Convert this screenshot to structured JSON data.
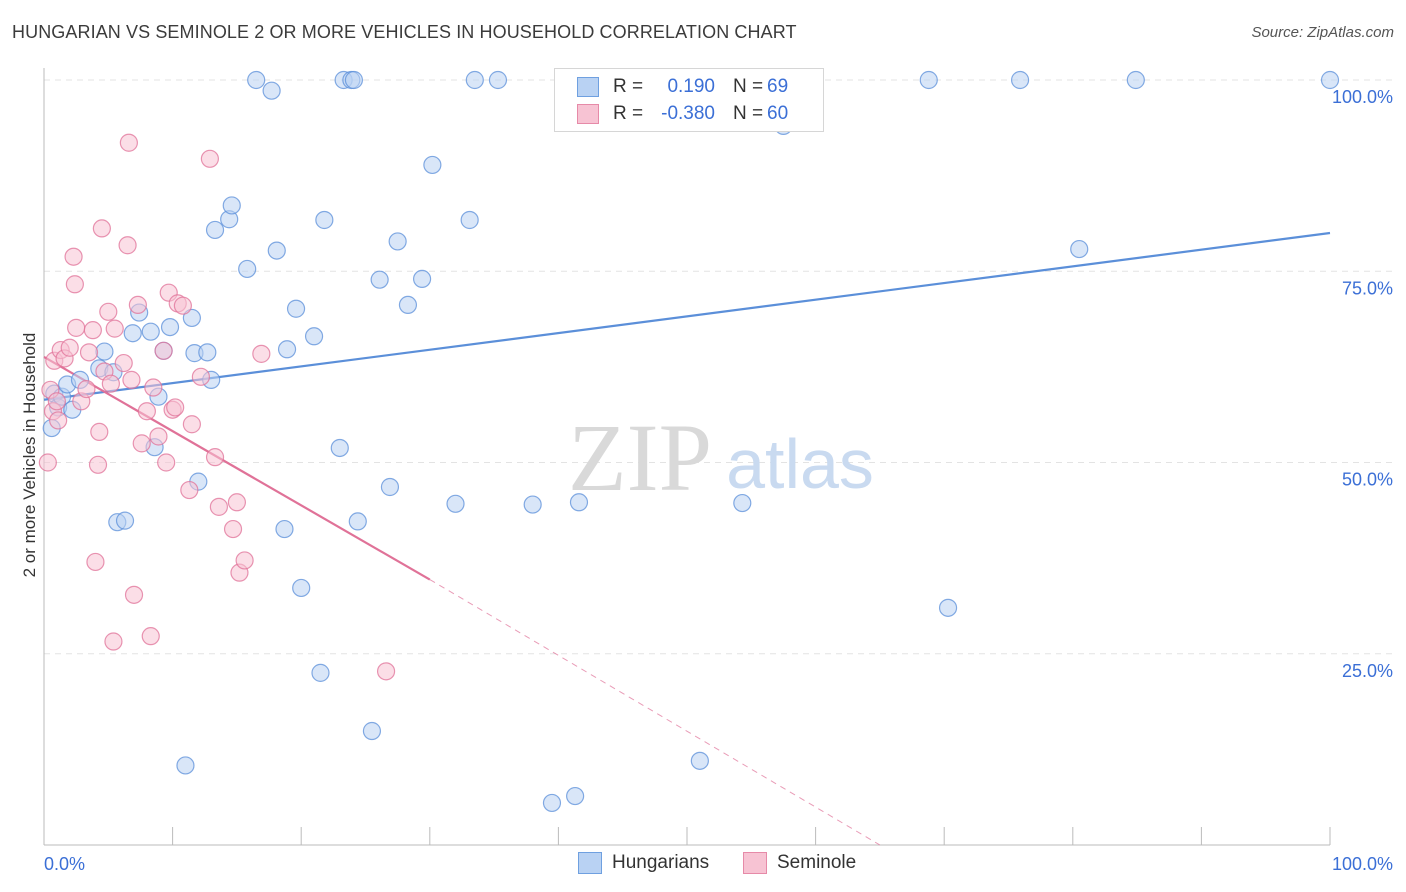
{
  "title": "HUNGARIAN VS SEMINOLE 2 OR MORE VEHICLES IN HOUSEHOLD CORRELATION CHART",
  "source": "Source: ZipAtlas.com",
  "watermark": {
    "zip": "ZIP",
    "atlas": "atlas"
  },
  "legend": {
    "rows": [
      {
        "r_label": "R =",
        "r_value": "0.190",
        "n_label": "N =",
        "n_value": "69",
        "color": "#6fa0e0",
        "fill": "#b9d2f3"
      },
      {
        "r_label": "R =",
        "r_value": "-0.380",
        "n_label": "N =",
        "n_value": "60",
        "color": "#e68aa8",
        "fill": "#f7c3d3"
      }
    ]
  },
  "bottom_legend": [
    {
      "label": "Hungarians",
      "color": "#6fa0e0",
      "fill": "#b9d2f3"
    },
    {
      "label": "Seminole",
      "color": "#e68aa8",
      "fill": "#f7c3d3"
    }
  ],
  "chart_data": {
    "type": "scatter",
    "title": "HUNGARIAN VS SEMINOLE 2 OR MORE VEHICLES IN HOUSEHOLD CORRELATION CHART",
    "xlabel": "",
    "ylabel": "2 or more Vehicles in Household",
    "xlim": [
      0,
      100
    ],
    "ylim": [
      0,
      100
    ],
    "x_tick_labels": [
      "0.0%",
      "100.0%"
    ],
    "y_tick_labels": [
      "100.0%",
      "75.0%",
      "50.0%",
      "25.0%"
    ],
    "y_tick_values": [
      100,
      75,
      50,
      25
    ],
    "grid": true,
    "series": [
      {
        "name": "Hungarians",
        "color": "#5b8fd9",
        "fill": "#b9d2f3",
        "trend": {
          "x0": 0,
          "y0": 58.2,
          "x1": 100,
          "y1": 80.0
        },
        "points": [
          [
            0.6,
            54.5
          ],
          [
            0.8,
            59
          ],
          [
            1.1,
            57.2
          ],
          [
            1.4,
            58.6
          ],
          [
            1.8,
            60.2
          ],
          [
            2.2,
            56.9
          ],
          [
            2.8,
            60.8
          ],
          [
            4.3,
            62.3
          ],
          [
            4.7,
            64.5
          ],
          [
            5.4,
            61.8
          ],
          [
            5.7,
            42.2
          ],
          [
            6.3,
            42.4
          ],
          [
            6.9,
            66.9
          ],
          [
            7.4,
            69.6
          ],
          [
            8.3,
            67.1
          ],
          [
            8.6,
            52.0
          ],
          [
            8.9,
            58.6
          ],
          [
            9.3,
            64.6
          ],
          [
            9.8,
            67.7
          ],
          [
            11.0,
            10.4
          ],
          [
            11.5,
            68.9
          ],
          [
            11.7,
            64.3
          ],
          [
            12.0,
            47.5
          ],
          [
            12.7,
            64.4
          ],
          [
            13.0,
            60.8
          ],
          [
            13.3,
            80.4
          ],
          [
            14.4,
            81.8
          ],
          [
            14.6,
            83.6
          ],
          [
            15.8,
            75.3
          ],
          [
            16.5,
            100
          ],
          [
            17.7,
            98.6
          ],
          [
            18.1,
            77.7
          ],
          [
            18.7,
            41.3
          ],
          [
            18.9,
            64.8
          ],
          [
            19.6,
            70.1
          ],
          [
            20.0,
            33.6
          ],
          [
            21.0,
            66.5
          ],
          [
            21.5,
            22.5
          ],
          [
            21.8,
            81.7
          ],
          [
            23.0,
            51.9
          ],
          [
            23.3,
            100
          ],
          [
            23.9,
            100
          ],
          [
            24.1,
            100
          ],
          [
            24.4,
            42.3
          ],
          [
            25.5,
            14.9
          ],
          [
            26.1,
            73.9
          ],
          [
            26.9,
            46.8
          ],
          [
            27.5,
            78.9
          ],
          [
            28.3,
            70.6
          ],
          [
            29.4,
            74.0
          ],
          [
            30.2,
            88.9
          ],
          [
            32.0,
            44.6
          ],
          [
            33.1,
            81.7
          ],
          [
            33.5,
            100
          ],
          [
            35.3,
            100
          ],
          [
            38.0,
            44.5
          ],
          [
            39.5,
            5.5
          ],
          [
            41.3,
            6.4
          ],
          [
            41.6,
            44.8
          ],
          [
            51.0,
            11.0
          ],
          [
            54.3,
            44.7
          ],
          [
            57.5,
            94.0
          ],
          [
            68.8,
            100
          ],
          [
            70.3,
            31.0
          ],
          [
            75.9,
            100
          ],
          [
            80.5,
            77.9
          ],
          [
            84.9,
            100
          ],
          [
            100.0,
            100
          ]
        ]
      },
      {
        "name": "Seminole",
        "color": "#e07298",
        "fill": "#f7c3d3",
        "trend": {
          "x0": 0,
          "y0": 63.8,
          "x1": 30.0,
          "y1": 34.7,
          "dash_to_x": 65.0,
          "dash_to_y": 0
        },
        "points": [
          [
            0.3,
            50.0
          ],
          [
            0.5,
            59.5
          ],
          [
            0.7,
            56.7
          ],
          [
            0.8,
            63.3
          ],
          [
            1.0,
            58.0
          ],
          [
            1.1,
            55.5
          ],
          [
            1.3,
            64.7
          ],
          [
            1.6,
            63.6
          ],
          [
            2.0,
            65.0
          ],
          [
            2.3,
            76.9
          ],
          [
            2.4,
            73.3
          ],
          [
            2.5,
            67.6
          ],
          [
            2.9,
            58.0
          ],
          [
            3.3,
            59.6
          ],
          [
            3.5,
            64.4
          ],
          [
            3.8,
            67.3
          ],
          [
            4.0,
            37.0
          ],
          [
            4.2,
            49.7
          ],
          [
            4.3,
            54.0
          ],
          [
            4.5,
            80.6
          ],
          [
            4.7,
            61.9
          ],
          [
            5.0,
            69.7
          ],
          [
            5.2,
            60.3
          ],
          [
            5.4,
            26.6
          ],
          [
            5.5,
            67.5
          ],
          [
            6.2,
            63.0
          ],
          [
            6.5,
            78.4
          ],
          [
            6.6,
            91.8
          ],
          [
            6.8,
            60.8
          ],
          [
            7.0,
            32.7
          ],
          [
            7.3,
            70.6
          ],
          [
            7.6,
            52.5
          ],
          [
            8.0,
            56.7
          ],
          [
            8.3,
            27.3
          ],
          [
            8.5,
            59.8
          ],
          [
            8.9,
            53.4
          ],
          [
            9.3,
            64.6
          ],
          [
            9.5,
            50.0
          ],
          [
            9.7,
            72.2
          ],
          [
            10.0,
            56.9
          ],
          [
            10.2,
            57.2
          ],
          [
            10.4,
            70.8
          ],
          [
            10.8,
            70.5
          ],
          [
            11.3,
            46.4
          ],
          [
            11.5,
            55.0
          ],
          [
            12.2,
            61.2
          ],
          [
            12.9,
            89.7
          ],
          [
            13.3,
            50.7
          ],
          [
            13.6,
            44.2
          ],
          [
            14.7,
            41.3
          ],
          [
            15.0,
            44.8
          ],
          [
            15.2,
            35.6
          ],
          [
            15.6,
            37.2
          ],
          [
            16.9,
            64.2
          ],
          [
            26.6,
            22.7
          ]
        ]
      }
    ]
  }
}
